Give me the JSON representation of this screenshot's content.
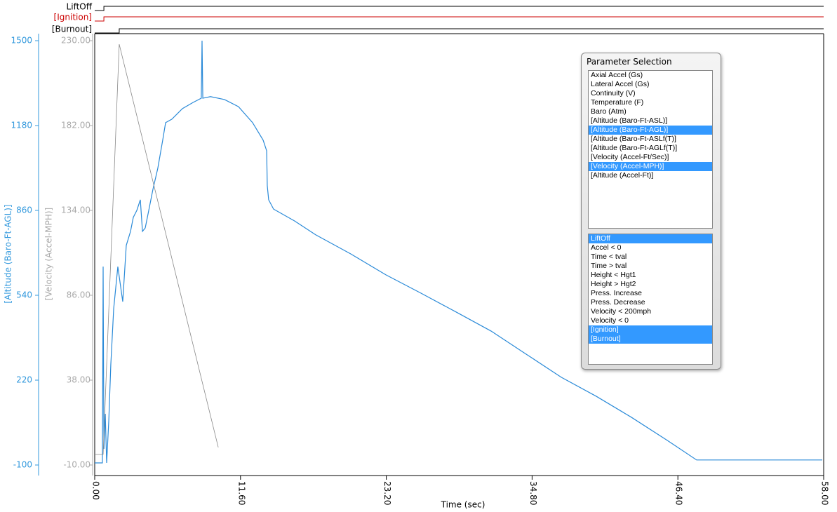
{
  "events": [
    {
      "name": "LiftOff",
      "color": "#000000",
      "step_time": 0.73
    },
    {
      "name": "[Ignition]",
      "color": "#cc0000",
      "step_time": 0.73
    },
    {
      "name": "[Burnout]",
      "color": "#000000",
      "step_time": 1.95
    }
  ],
  "chart_data": {
    "type": "line",
    "x_label": "Time (sec)",
    "xlim": [
      0,
      58
    ],
    "xticks": [
      {
        "value": 0,
        "label": "0.00"
      },
      {
        "value": 11.6,
        "label": "11.60"
      },
      {
        "value": 23.2,
        "label": "23.20"
      },
      {
        "value": 34.8,
        "label": "34.80"
      },
      {
        "value": 46.4,
        "label": "46.40"
      },
      {
        "value": 58,
        "label": "58.00"
      }
    ],
    "y_label": "[Altitude (Baro-Ft-AGL)]",
    "y_color": "#3399dd",
    "ylim": [
      -100,
      1500
    ],
    "yticks": [
      -100,
      220,
      540,
      860,
      1180,
      1500
    ],
    "y2_label": "[Velocity (Accel-MPH)]",
    "y2_color": "#aaaaaa",
    "y2lim": [
      -10,
      230
    ],
    "y2ticks": [
      {
        "value": -10,
        "label": "-10.00"
      },
      {
        "value": 38,
        "label": "38.00"
      },
      {
        "value": 86,
        "label": "86.00"
      },
      {
        "value": 134,
        "label": "134.00"
      },
      {
        "value": 182,
        "label": "182.00"
      },
      {
        "value": 230,
        "label": "230.00"
      }
    ],
    "series": [
      {
        "color": "#2a8ad8",
        "x": [
          0,
          0.61,
          0.67,
          0.73,
          0.84,
          0.95,
          1.12,
          1.28,
          1.51,
          1.84,
          2.23,
          2.51,
          2.85,
          3.07,
          3.35,
          3.63,
          3.8,
          4.02,
          4.3,
          4.63,
          5.02,
          5.41,
          5.64,
          6.14,
          6.98,
          7.82,
          8.48,
          8.54,
          8.6,
          9.21,
          10.33,
          11.44,
          12.56,
          13.4,
          13.68,
          13.73,
          13.84,
          14.23,
          15.91,
          17.58,
          20.37,
          23.17,
          25.96,
          28.75,
          31.54,
          34.33,
          37.12,
          39.91,
          42.7,
          45.49,
          47.89,
          48.29,
          53.87,
          57.89
        ],
        "values": [
          -92,
          -92,
          648,
          -39,
          93,
          -92,
          67,
          278,
          490,
          648,
          516,
          728,
          781,
          834,
          860,
          900,
          781,
          794,
          860,
          939,
          1019,
          1125,
          1191,
          1204,
          1244,
          1267,
          1283,
          1500,
          1283,
          1289,
          1278,
          1251,
          1191,
          1125,
          1085,
          953,
          900,
          865,
          820,
          768,
          696,
          617,
          548,
          477,
          405,
          318,
          231,
          159,
          80,
          -5,
          -81,
          -81,
          -81,
          -81
        ]
      },
      {
        "color": "#888888",
        "axis": "y2",
        "x": [
          0,
          0.67,
          1.95,
          9.83
        ],
        "values": [
          -4,
          -4,
          228,
          0
        ]
      }
    ]
  },
  "panel": {
    "title": "Parameter Selection",
    "parameters": [
      {
        "label": "Axial Accel (Gs)",
        "selected": false
      },
      {
        "label": "Lateral Accel (Gs)",
        "selected": false
      },
      {
        "label": "Continuity (V)",
        "selected": false
      },
      {
        "label": "Temperature (F)",
        "selected": false
      },
      {
        "label": "Baro (Atm)",
        "selected": false
      },
      {
        "label": "[Altitude (Baro-Ft-ASL)]",
        "selected": false
      },
      {
        "label": "[Altitude (Baro-Ft-AGL)]",
        "selected": true
      },
      {
        "label": "[Altitude (Baro-Ft-ASLf(T)]",
        "selected": false
      },
      {
        "label": "[Altitude (Baro-Ft-AGLf(T)]",
        "selected": false
      },
      {
        "label": "[Velocity (Accel-Ft/Sec)]",
        "selected": false
      },
      {
        "label": "[Velocity (Accel-MPH)]",
        "selected": true
      },
      {
        "label": "[Altitude (Accel-Ft)]",
        "selected": false
      }
    ],
    "events": [
      {
        "label": "LiftOff",
        "selected": true
      },
      {
        "label": "Accel < 0",
        "selected": false
      },
      {
        "label": "Time < tval",
        "selected": false
      },
      {
        "label": "Time > tval",
        "selected": false
      },
      {
        "label": "Height < Hgt1",
        "selected": false
      },
      {
        "label": "Height > Hgt2",
        "selected": false
      },
      {
        "label": "Press. Increase",
        "selected": false
      },
      {
        "label": "Press. Decrease",
        "selected": false
      },
      {
        "label": "Velocity < 200mph",
        "selected": false
      },
      {
        "label": "Velocity < 0",
        "selected": false
      },
      {
        "label": "[Ignition]",
        "selected": true
      },
      {
        "label": "[Burnout]",
        "selected": true
      }
    ]
  }
}
